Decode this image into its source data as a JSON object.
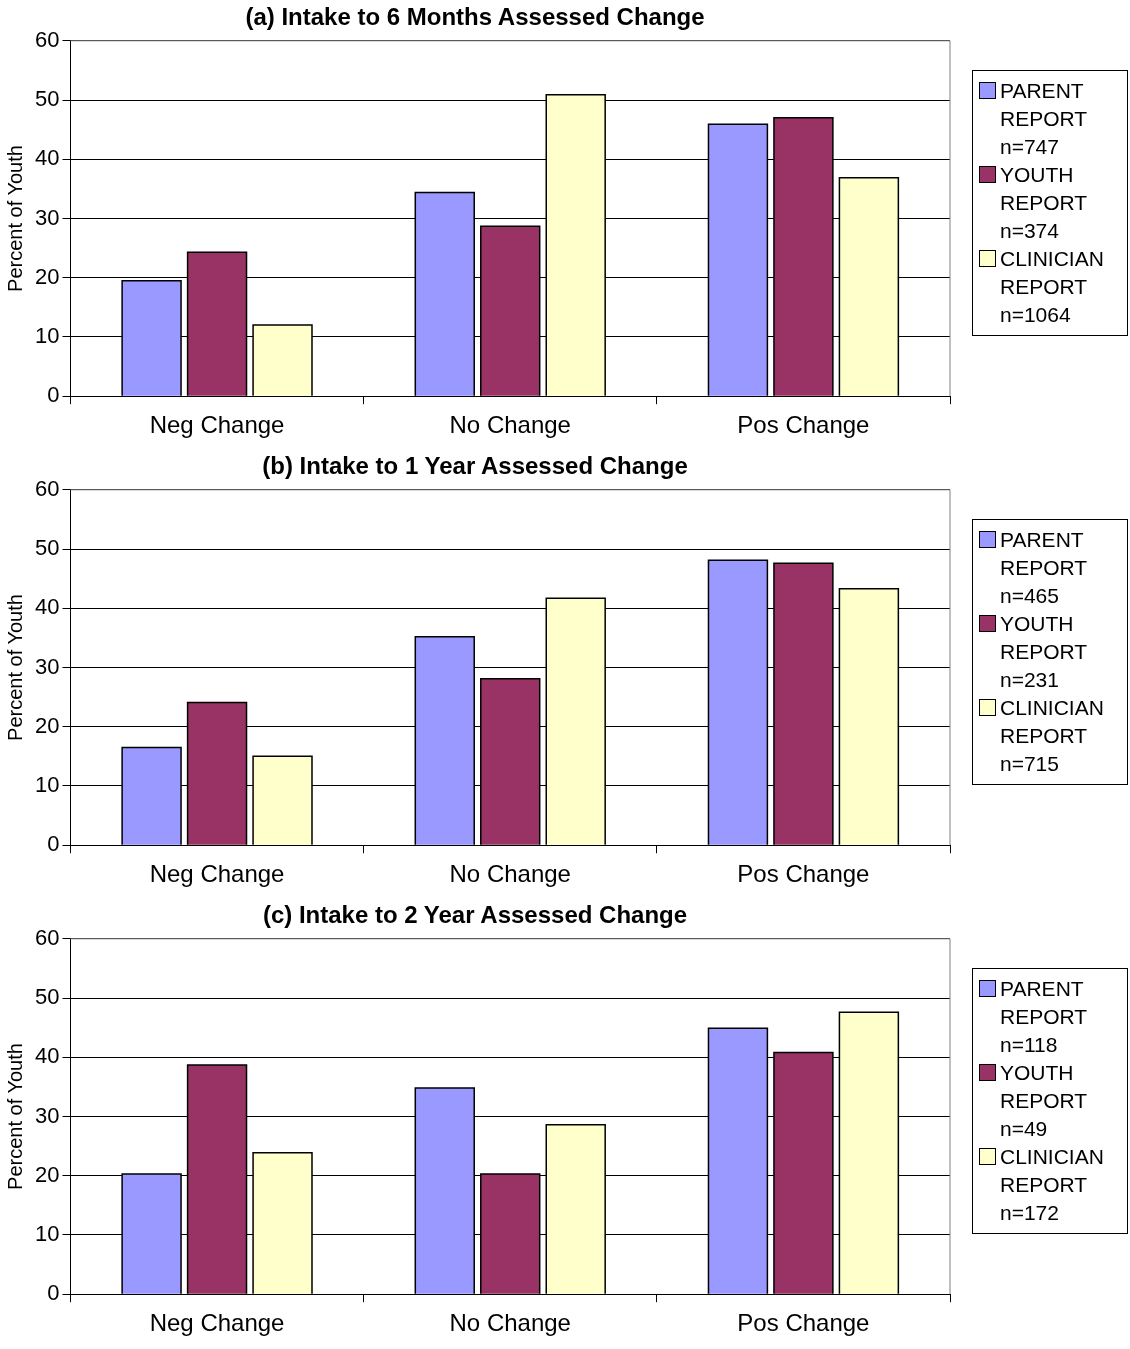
{
  "chart_data": [
    {
      "type": "bar",
      "title": "(a) Intake to 6 Months Assessed Change",
      "ylabel": "Percent of Youth",
      "categories": [
        "Neg Change",
        "No Change",
        "Pos Change"
      ],
      "series": [
        {
          "name": "PARENT REPORT n=747",
          "color": "#9999ff",
          "values": [
            19.5,
            34.4,
            45.9
          ]
        },
        {
          "name": "YOUTH REPORT n=374",
          "color": "#993366",
          "values": [
            24.3,
            28.7,
            47.0
          ]
        },
        {
          "name": "CLINICIAN REPORT n=1064",
          "color": "#ffffcc",
          "values": [
            12.0,
            50.9,
            36.9
          ]
        }
      ],
      "ylim": [
        0,
        60
      ],
      "yticks": [
        0,
        10,
        20,
        30,
        40,
        50,
        60
      ],
      "grid": "y",
      "legend": "right"
    },
    {
      "type": "bar",
      "title": "(b) Intake to 1 Year Assessed Change",
      "ylabel": "Percent of Youth",
      "categories": [
        "Neg Change",
        "No Change",
        "Pos Change"
      ],
      "series": [
        {
          "name": "PARENT REPORT n=465",
          "color": "#9999ff",
          "values": [
            16.5,
            35.2,
            48.1
          ]
        },
        {
          "name": "YOUTH REPORT n=231",
          "color": "#993366",
          "values": [
            24.1,
            28.1,
            47.6
          ]
        },
        {
          "name": "CLINICIAN REPORT n=715",
          "color": "#ffffcc",
          "values": [
            15.0,
            41.7,
            43.3
          ]
        }
      ],
      "ylim": [
        0,
        60
      ],
      "yticks": [
        0,
        10,
        20,
        30,
        40,
        50,
        60
      ],
      "grid": "y",
      "legend": "right"
    },
    {
      "type": "bar",
      "title": "(c) Intake to 2 Year Assessed Change",
      "ylabel": "Percent of Youth",
      "categories": [
        "Neg Change",
        "No Change",
        "Pos Change"
      ],
      "series": [
        {
          "name": "PARENT REPORT n=118",
          "color": "#9999ff",
          "values": [
            20.3,
            34.8,
            44.9
          ]
        },
        {
          "name": "YOUTH REPORT n=49",
          "color": "#993366",
          "values": [
            38.7,
            20.3,
            40.8
          ]
        },
        {
          "name": "CLINICIAN REPORT n=172",
          "color": "#ffffcc",
          "values": [
            23.9,
            28.6,
            47.6
          ]
        }
      ],
      "ylim": [
        0,
        60
      ],
      "yticks": [
        0,
        10,
        20,
        30,
        40,
        50,
        60
      ],
      "grid": "y",
      "legend": "right"
    }
  ]
}
